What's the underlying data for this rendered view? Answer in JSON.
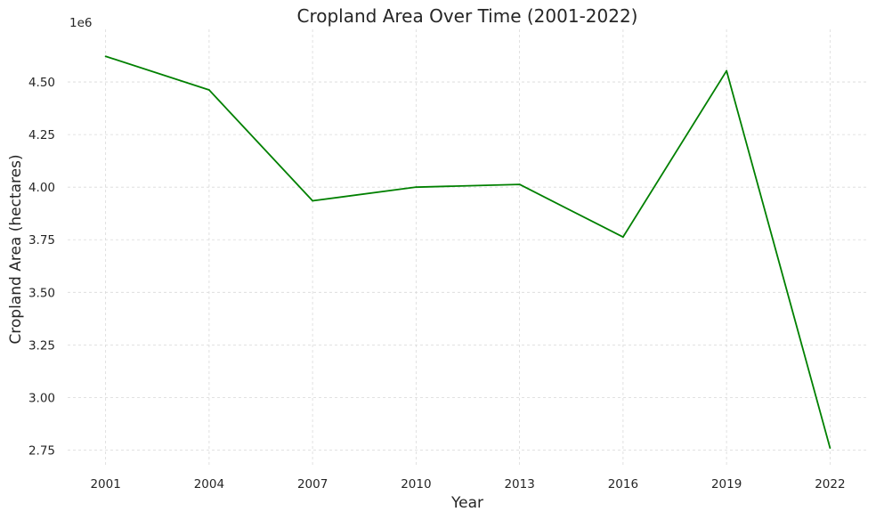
{
  "chart_data": {
    "type": "line",
    "title": "Cropland Area Over Time (2001-2022)",
    "xlabel": "Year",
    "ylabel": "Cropland Area (hectares)",
    "offset_label": "1e6",
    "x": [
      2001,
      2004,
      2007,
      2010,
      2013,
      2016,
      2019,
      2022
    ],
    "series": [
      {
        "values": [
          4622000,
          4462000,
          3935000,
          4000000,
          4013000,
          3763000,
          4553000,
          2760000
        ]
      }
    ],
    "xticks": [
      2001,
      2004,
      2007,
      2010,
      2013,
      2016,
      2019,
      2022
    ],
    "xtick_labels": [
      "2001",
      "2004",
      "2007",
      "2010",
      "2013",
      "2016",
      "2019",
      "2022"
    ],
    "yticks": [
      2.75,
      3.0,
      3.25,
      3.5,
      3.75,
      4.0,
      4.25,
      4.5
    ],
    "ytick_labels": [
      "2.75",
      "3.00",
      "3.25",
      "3.50",
      "3.75",
      "4.00",
      "4.25",
      "4.50"
    ],
    "xlim": [
      1999.9,
      2023.1
    ],
    "ylim": [
      2.68,
      4.75
    ],
    "grid": true,
    "line_color": "#008000"
  }
}
